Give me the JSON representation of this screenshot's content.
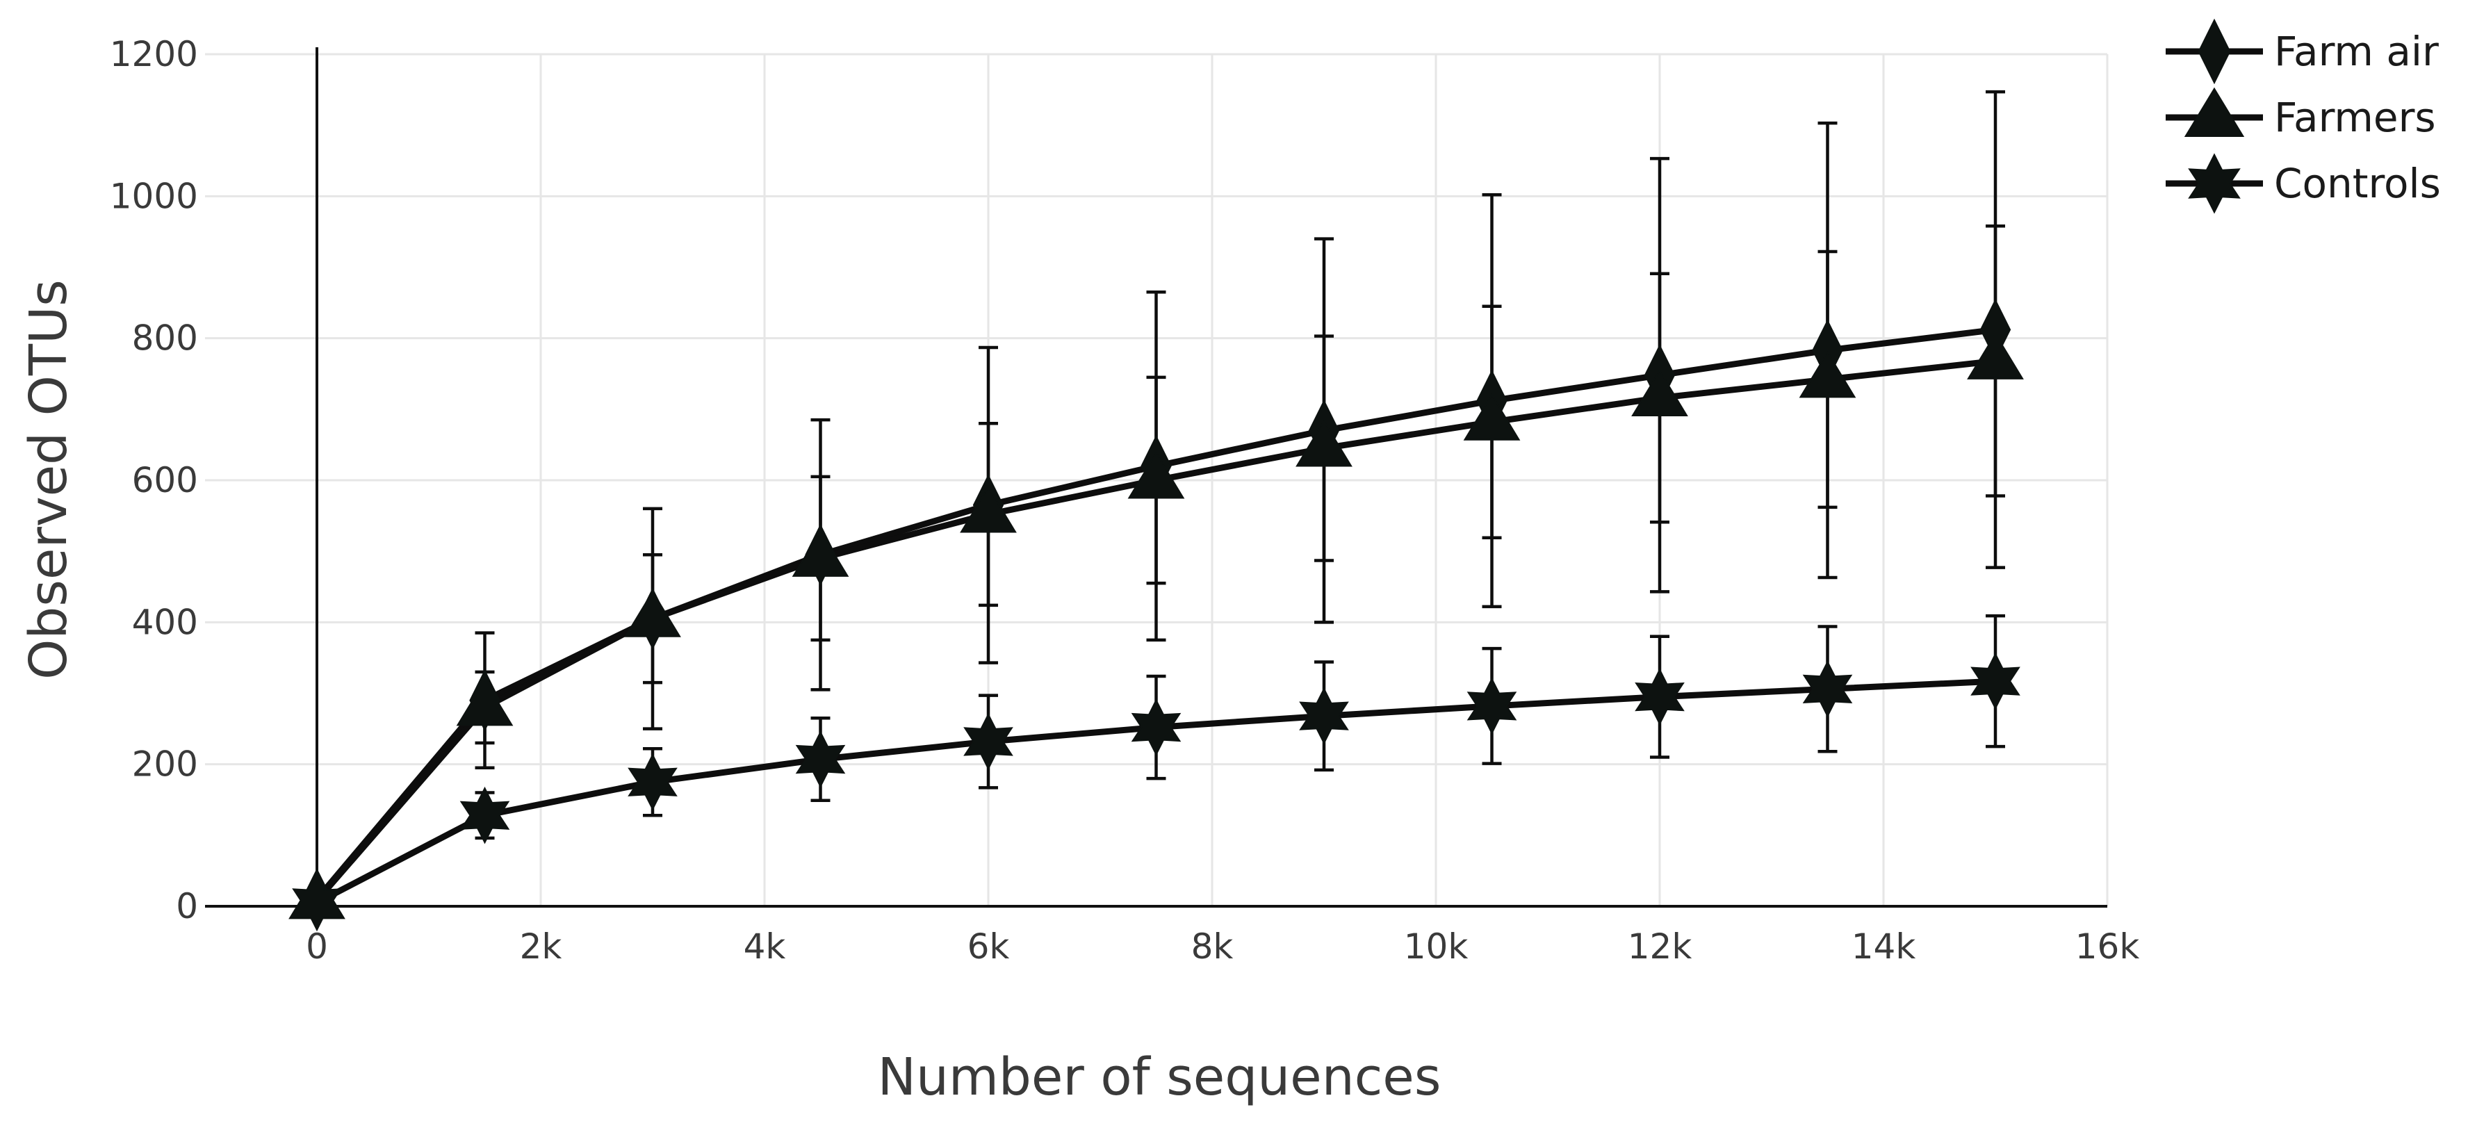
{
  "chart_data": {
    "type": "line",
    "xlabel": "Number of sequences",
    "ylabel": "Observed OTUs",
    "xlim": [
      -1000,
      16000
    ],
    "ylim": [
      0,
      1200
    ],
    "x_ticks": [
      0,
      2000,
      4000,
      6000,
      8000,
      10000,
      12000,
      14000,
      16000
    ],
    "x_tick_labels": [
      "0",
      "2k",
      "4k",
      "6k",
      "8k",
      "10k",
      "12k",
      "14k",
      "16k"
    ],
    "y_ticks": [
      0,
      200,
      400,
      600,
      800,
      1000,
      1200
    ],
    "y_tick_labels": [
      "0",
      "200",
      "400",
      "600",
      "800",
      "1000",
      "1200"
    ],
    "grid": true,
    "legend_position": "top-right",
    "x": [
      0,
      1500,
      3000,
      4500,
      6000,
      7500,
      9000,
      10500,
      12000,
      13500,
      15000
    ],
    "series": [
      {
        "name": "Farm air",
        "marker": "diamond",
        "values": [
          10,
          290,
          405,
          495,
          565,
          620,
          670,
          712,
          748,
          783,
          812
        ],
        "error": [
          0,
          95,
          155,
          190,
          222,
          245,
          270,
          290,
          305,
          320,
          335
        ]
      },
      {
        "name": "Farmers",
        "marker": "triangle",
        "values": [
          8,
          280,
          405,
          490,
          552,
          600,
          645,
          682,
          716,
          742,
          768
        ],
        "error": [
          0,
          50,
          90,
          115,
          128,
          145,
          158,
          163,
          175,
          180,
          190
        ]
      },
      {
        "name": "Controls",
        "marker": "star",
        "values": [
          5,
          128,
          175,
          207,
          232,
          252,
          268,
          282,
          295,
          306,
          317
        ],
        "error": [
          0,
          32,
          47,
          58,
          65,
          72,
          76,
          81,
          85,
          88,
          92
        ]
      }
    ]
  }
}
